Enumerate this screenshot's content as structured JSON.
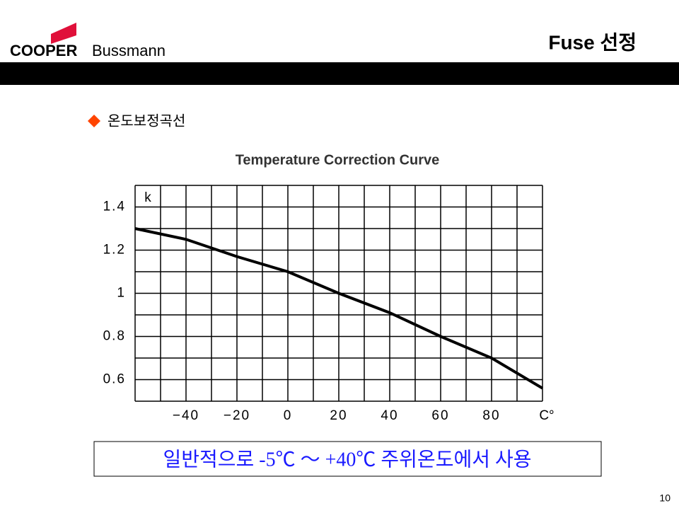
{
  "header": {
    "brand_bold": "COOPER",
    "brand": "Bussmann",
    "title": "Fuse 선정"
  },
  "section": "온도보정곡선",
  "chart_data": {
    "type": "line",
    "title": "Temperature Correction Curve",
    "xlabel": "C°",
    "ylabel": "k",
    "x": [
      -60,
      -40,
      -20,
      0,
      20,
      40,
      60,
      80,
      100
    ],
    "series": [
      {
        "name": "k",
        "color": "#000000",
        "values": [
          1.3,
          1.25,
          1.17,
          1.1,
          1.0,
          0.91,
          0.8,
          0.7,
          0.56
        ]
      }
    ],
    "xlim": [
      -60,
      100
    ],
    "ylim": [
      0.5,
      1.5
    ],
    "xticks": [
      {
        "value": -40,
        "label": "−40"
      },
      {
        "value": -20,
        "label": "−20"
      },
      0,
      20,
      40,
      60,
      80
    ],
    "yticks": [
      0.6,
      0.8,
      1,
      1.2,
      1.4
    ],
    "xgrid": [
      -60,
      -50,
      -40,
      -30,
      -20,
      -10,
      0,
      10,
      20,
      30,
      40,
      50,
      60,
      70,
      80,
      90,
      100
    ],
    "ygrid": [
      0.5,
      0.6,
      0.7,
      0.8,
      0.9,
      1,
      1.1,
      1.2,
      1.3,
      1.4,
      1.5
    ]
  },
  "note": "일반적으로 -5℃ ～ +40℃ 주위온도에서 사용",
  "page_number": "10"
}
